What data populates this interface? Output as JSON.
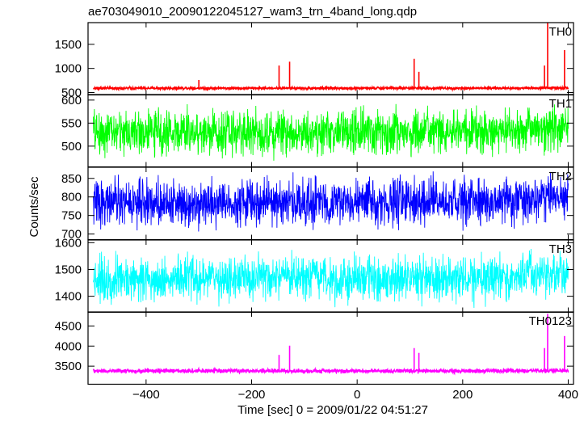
{
  "chart_data": {
    "type": "line",
    "title": "ae703049010_20090122045127_wam3_trn_4band_long.qdp",
    "xlabel": "Time [sec] 0 = 2009/01/22 04:51:27",
    "ylabel": "Counts/sec",
    "xlim": [
      -510,
      410
    ],
    "xticks": [
      -400,
      -200,
      0,
      200,
      400
    ],
    "xtick_labels": [
      "−400",
      "−200",
      "0",
      "200",
      "400"
    ],
    "panels": [
      {
        "name": "TH0",
        "color": "#ff0000",
        "ylim": [
          450,
          1950
        ],
        "yticks": [
          500,
          1000,
          1500
        ],
        "ytick_labels": [
          "500",
          "1000",
          "1500"
        ],
        "baseline": 590,
        "noise": 30,
        "spikes": [
          {
            "x": -300,
            "y": 760
          },
          {
            "x": -148,
            "y": 1060
          },
          {
            "x": -128,
            "y": 1140
          },
          {
            "x": 108,
            "y": 1200
          },
          {
            "x": 117,
            "y": 930
          },
          {
            "x": 355,
            "y": 1060
          },
          {
            "x": 361,
            "y": 1950
          },
          {
            "x": 393,
            "y": 1380
          }
        ]
      },
      {
        "name": "TH1",
        "color": "#00ff00",
        "ylim": [
          455,
          612
        ],
        "yticks": [
          500,
          550,
          600
        ],
        "ytick_labels": [
          "500",
          "550",
          "600"
        ],
        "baseline": 530,
        "noise": 55,
        "spikes": []
      },
      {
        "name": "TH2",
        "color": "#0000ff",
        "ylim": [
          685,
          880
        ],
        "yticks": [
          700,
          750,
          800,
          850
        ],
        "ytick_labels": [
          "700",
          "750",
          "800",
          "850"
        ],
        "baseline": 785,
        "noise": 70,
        "spikes": []
      },
      {
        "name": "TH3",
        "color": "#00ffff",
        "ylim": [
          1340,
          1610
        ],
        "yticks": [
          1400,
          1500,
          1600
        ],
        "ytick_labels": [
          "1400",
          "1500",
          "1600"
        ],
        "baseline": 1465,
        "noise": 95,
        "spikes": []
      },
      {
        "name": "TH0123",
        "color": "#ff00ff",
        "ylim": [
          3050,
          4850
        ],
        "yticks": [
          3500,
          4000,
          4500
        ],
        "ytick_labels": [
          "3500",
          "4000",
          "4500"
        ],
        "baseline": 3380,
        "noise": 60,
        "spikes": [
          {
            "x": -148,
            "y": 3780
          },
          {
            "x": -128,
            "y": 4010
          },
          {
            "x": 108,
            "y": 3950
          },
          {
            "x": 117,
            "y": 3830
          },
          {
            "x": 355,
            "y": 3950
          },
          {
            "x": 361,
            "y": 4800
          },
          {
            "x": 393,
            "y": 4250
          }
        ]
      }
    ]
  }
}
